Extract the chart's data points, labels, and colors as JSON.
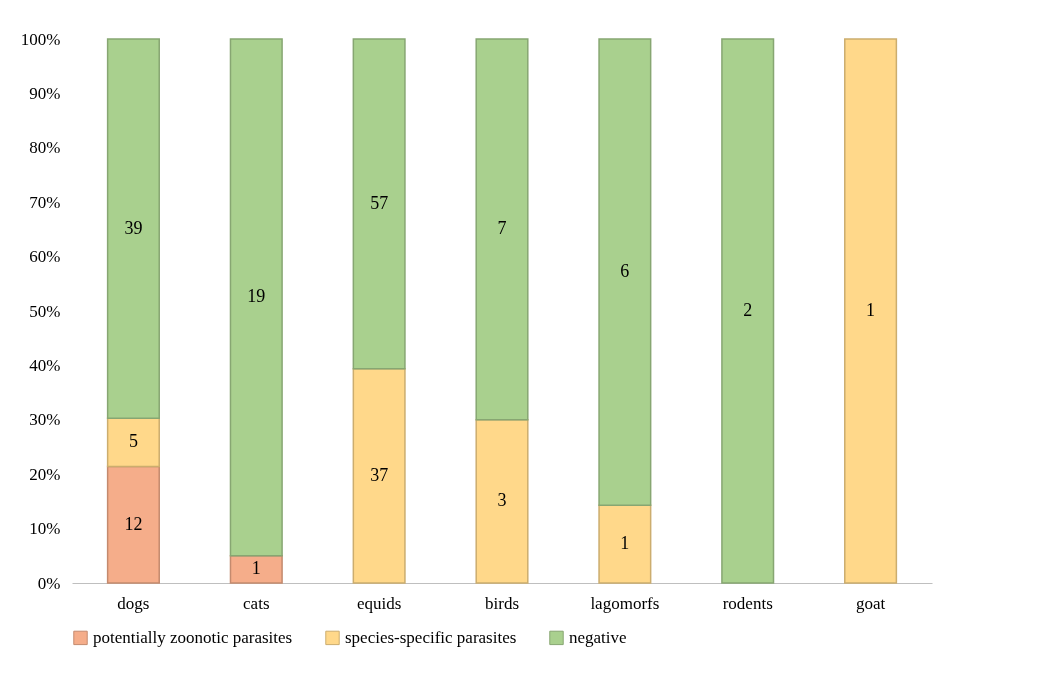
{
  "chart_data": {
    "type": "bar",
    "stacked": true,
    "categories": [
      "dogs",
      "cats",
      "equids",
      "birds",
      "lagomorfs",
      "rodents",
      "goat"
    ],
    "series": [
      {
        "name": "potentially zoonotic parasites",
        "color": "#f5ad8a",
        "values": [
          21.4,
          5,
          null,
          null,
          null,
          null,
          null
        ]
      },
      {
        "name": "species-specific parasites",
        "color": "#ffd88a",
        "values": [
          8.9,
          null,
          39.4,
          30,
          14.3,
          null,
          100
        ]
      },
      {
        "name": "negative",
        "color": "#a9d08e",
        "values": [
          69.7,
          95,
          60.6,
          70,
          85.7,
          100,
          null
        ]
      }
    ],
    "annotations": [
      "12",
      "5",
      "39",
      "1",
      "19",
      "37",
      "57",
      "3",
      "7",
      "1",
      "6",
      "2",
      "1"
    ],
    "ylim": [
      0,
      100
    ],
    "yticks": [
      {
        "value": 0,
        "label": "0%"
      },
      {
        "value": 10,
        "label": "10%"
      },
      {
        "value": 20,
        "label": "20%"
      },
      {
        "value": 30,
        "label": "30%"
      },
      {
        "value": 40,
        "label": "40%"
      },
      {
        "value": 50,
        "label": "50%"
      },
      {
        "value": 60,
        "label": "60%"
      },
      {
        "value": 70,
        "label": "70%"
      },
      {
        "value": 80,
        "label": "80%"
      },
      {
        "value": 90,
        "label": "90%"
      },
      {
        "value": 100,
        "label": "100%"
      }
    ],
    "grid": false,
    "legend": "bottom"
  }
}
